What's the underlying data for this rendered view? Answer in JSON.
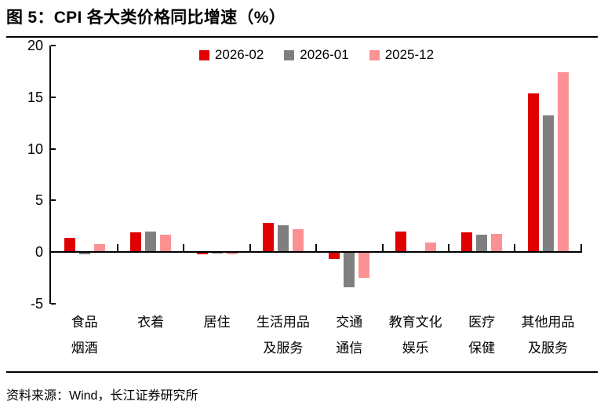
{
  "header": {
    "title": "图 5：CPI 各大类价格同比增速（%）"
  },
  "source": {
    "text": "资料来源：Wind，长江证券研究所"
  },
  "chart_data": {
    "type": "bar",
    "title": "CPI 各大类价格同比增速（%）",
    "figure_label": "图 5",
    "categories": [
      "食品烟酒",
      "衣着",
      "居住",
      "生活用品及服务",
      "交通通信",
      "教育文化娱乐",
      "医疗保健",
      "其他用品及服务"
    ],
    "category_lines": [
      [
        "食品",
        "烟酒"
      ],
      [
        "衣着"
      ],
      [
        "居住"
      ],
      [
        "生活用品",
        "及服务"
      ],
      [
        "交通",
        "通信"
      ],
      [
        "教育文化",
        "娱乐"
      ],
      [
        "医疗",
        "保健"
      ],
      [
        "其他用品",
        "及服务"
      ]
    ],
    "series": [
      {
        "name": "2026-02",
        "color": "#e00000",
        "values": [
          1.4,
          1.9,
          -0.2,
          2.8,
          -0.7,
          2.0,
          1.9,
          15.4
        ]
      },
      {
        "name": "2026-01",
        "color": "#7f7f7f",
        "values": [
          -0.2,
          2.0,
          -0.1,
          2.6,
          -3.4,
          0.0,
          1.7,
          13.2
        ]
      },
      {
        "name": "2025-12",
        "color": "#fc9193",
        "values": [
          0.8,
          1.7,
          -0.2,
          2.2,
          -2.5,
          0.9,
          1.8,
          17.4
        ]
      }
    ],
    "yticks": [
      20,
      15,
      10,
      5,
      0,
      -5
    ],
    "ylim": [
      -5,
      20
    ],
    "xlabel": "",
    "ylabel": "",
    "grid": false,
    "legend_position": "top-center",
    "axis_color": "#000000"
  }
}
